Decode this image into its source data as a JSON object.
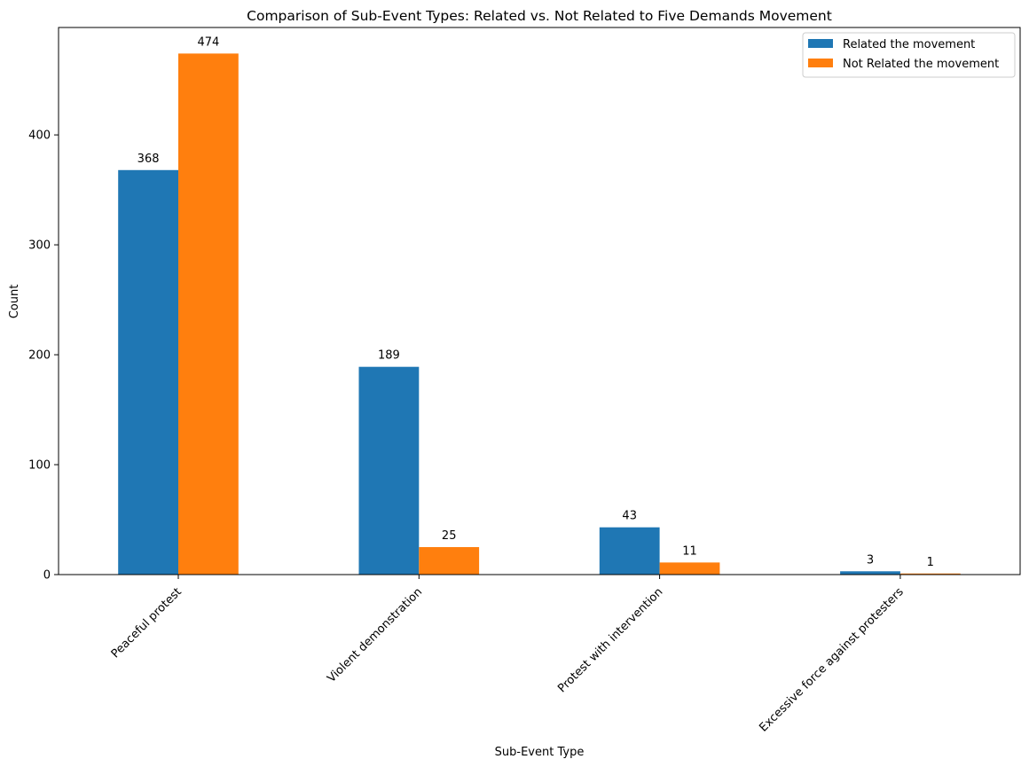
{
  "chart_data": {
    "type": "bar",
    "title": "Comparison of Sub-Event Types: Related vs. Not Related to Five Demands Movement",
    "xlabel": "Sub-Event Type",
    "ylabel": "Count",
    "categories": [
      "Peaceful protest",
      "Violent demonstration",
      "Protest with intervention",
      "Excessive force against protesters"
    ],
    "series": [
      {
        "name": "Related the movement",
        "values": [
          368,
          189,
          43,
          3
        ],
        "color": "#1f77b4"
      },
      {
        "name": "Not Related the movement",
        "values": [
          474,
          25,
          11,
          1
        ],
        "color": "#ff7f0e"
      }
    ],
    "ylim": [
      0,
      497.7
    ],
    "yticks": [
      0,
      100,
      200,
      300,
      400
    ],
    "grid": false,
    "legend_position": "top-right",
    "data_labels": true
  }
}
